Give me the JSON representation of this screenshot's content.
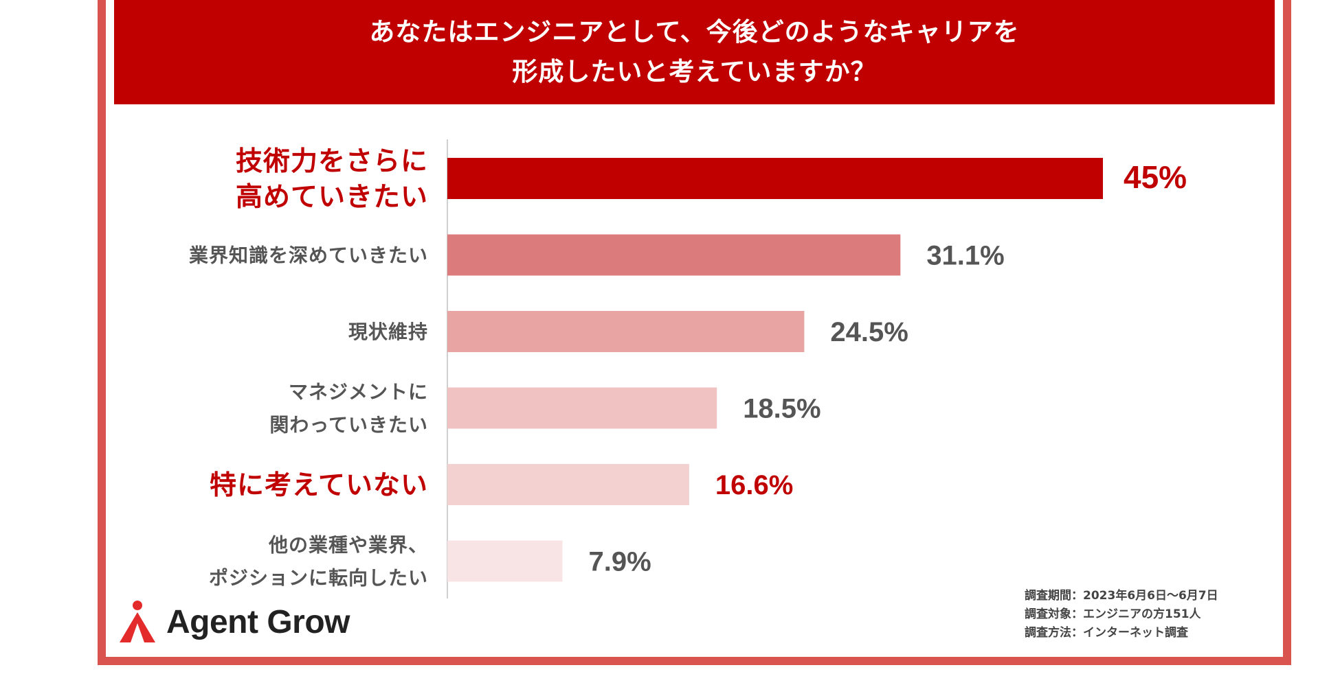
{
  "header": {
    "title_line1": "あなたはエンジニアとして、今後どのようなキャリアを",
    "title_line2": "形成したいと考えていますか？"
  },
  "chart_data": {
    "type": "bar",
    "orientation": "horizontal",
    "categories": [
      [
        "技術力をさらに",
        "高めていきたい"
      ],
      [
        "業界知識を深めていきたい"
      ],
      [
        "現状維持"
      ],
      [
        "マネジメントに",
        "関わっていきたい"
      ],
      [
        "特に考えていない"
      ],
      [
        "他の業種や業界、",
        "ポジションに転向したい"
      ]
    ],
    "values": [
      45,
      31.1,
      24.5,
      18.5,
      16.6,
      7.9
    ],
    "value_labels": [
      "45%",
      "31.1%",
      "24.5%",
      "18.5%",
      "16.6%",
      "7.9%"
    ],
    "highlighted": [
      true,
      false,
      false,
      false,
      true,
      false
    ],
    "bar_colors": [
      "#c00000",
      "#dc7b7b",
      "#e8a3a3",
      "#f0c2c2",
      "#f3d1d1",
      "#f8e4e4"
    ],
    "accent_color": "#c00000",
    "label_color": "#555555",
    "value_label_color": "#555555",
    "xlim": [
      0,
      45
    ],
    "grid": false
  },
  "notes": [
    "調査期間：2023年6月6日〜6月7日",
    "調査対象：エンジニアの方151人",
    "調査方法：インターネット調査"
  ],
  "brand": {
    "name": "Agent Grow",
    "logo_icon": "person-triangle-icon",
    "logo_color": "#e32b2b"
  }
}
